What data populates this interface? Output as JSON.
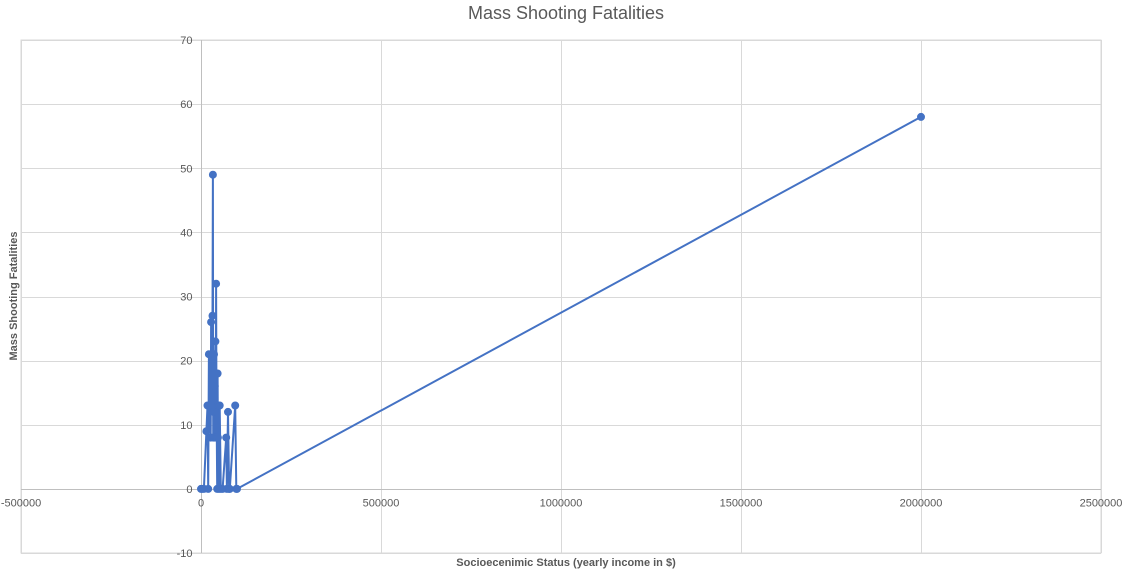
{
  "chart_data": {
    "type": "scatter",
    "title": "Mass Shooting Fatalities",
    "xlabel": "Socioecenimic Status (yearly income in $)",
    "ylabel": "Mass Shooting Fatalities",
    "xlim": [
      -500000,
      2500000
    ],
    "ylim": [
      -10,
      70
    ],
    "x_ticks": [
      -500000,
      0,
      500000,
      1000000,
      1500000,
      2000000,
      2500000
    ],
    "x_tick_labels": [
      "-500000",
      "0",
      "500000",
      "1000000",
      "1500000",
      "2000000",
      "2500000"
    ],
    "y_ticks": [
      -10,
      0,
      10,
      20,
      30,
      40,
      50,
      60,
      70
    ],
    "y_tick_labels": [
      "-10",
      "0",
      "10",
      "20",
      "30",
      "40",
      "50",
      "60",
      "70"
    ],
    "grid": true,
    "lines_connected": true,
    "series_color": "#4472C4",
    "x": [
      0,
      3000,
      8000,
      15000,
      18000,
      20000,
      22000,
      25000,
      27000,
      28000,
      30000,
      32000,
      33000,
      34000,
      35000,
      36000,
      37000,
      38000,
      40000,
      41000,
      42000,
      43000,
      44000,
      45000,
      46000,
      47000,
      48000,
      50000,
      52000,
      55000,
      60000,
      70000,
      72000,
      75000,
      78000,
      80000,
      95000,
      98000,
      100000,
      2000000
    ],
    "y": [
      0,
      0,
      0,
      9,
      13,
      0,
      21,
      13,
      8,
      26,
      13,
      27,
      49,
      8,
      12,
      21,
      8,
      16,
      23,
      8,
      32,
      12,
      8,
      0,
      18,
      8,
      13,
      0,
      13,
      0,
      0,
      8,
      0,
      12,
      0,
      0,
      13,
      0,
      0,
      58
    ]
  }
}
